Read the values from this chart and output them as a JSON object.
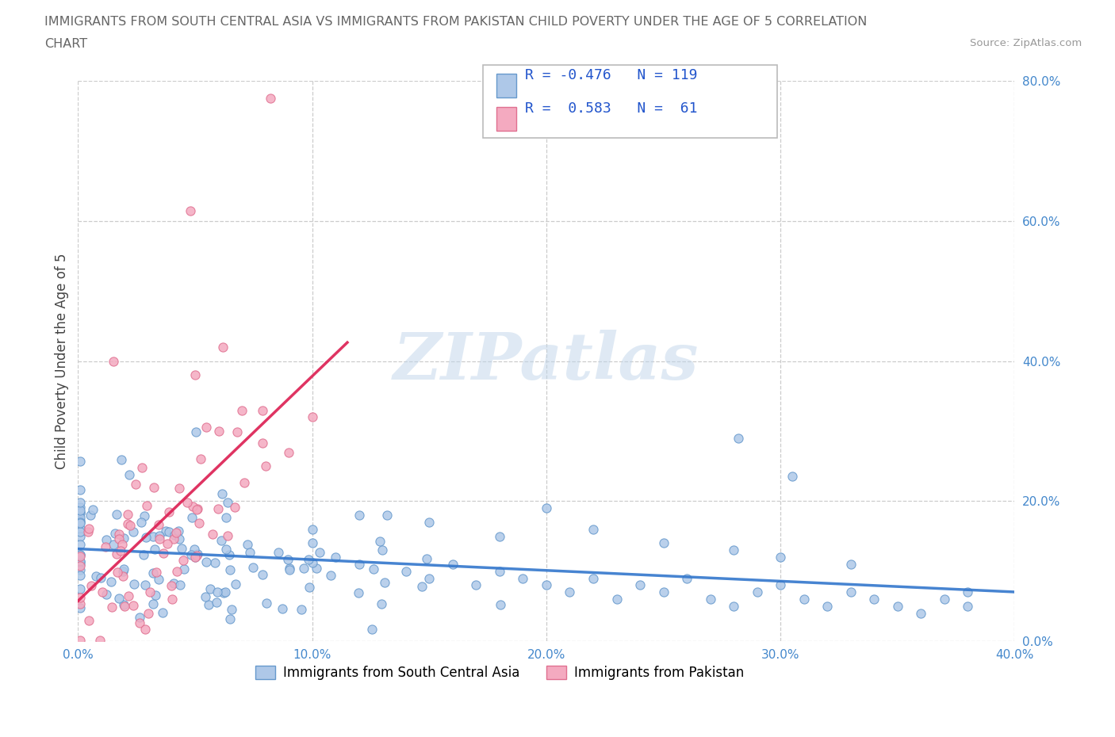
{
  "title_line1": "IMMIGRANTS FROM SOUTH CENTRAL ASIA VS IMMIGRANTS FROM PAKISTAN CHILD POVERTY UNDER THE AGE OF 5 CORRELATION",
  "title_line2": "CHART",
  "source": "Source: ZipAtlas.com",
  "ylabel": "Child Poverty Under the Age of 5",
  "xlim": [
    0.0,
    0.4
  ],
  "ylim": [
    0.0,
    0.8
  ],
  "xticks": [
    0.0,
    0.1,
    0.2,
    0.3,
    0.4
  ],
  "yticks": [
    0.0,
    0.2,
    0.4,
    0.6,
    0.8
  ],
  "xtick_labels": [
    "0.0%",
    "10.0%",
    "20.0%",
    "30.0%",
    "40.0%"
  ],
  "ytick_labels": [
    "0.0%",
    "20.0%",
    "40.0%",
    "60.0%",
    "80.0%"
  ],
  "blue_face": "#aec8e8",
  "blue_edge": "#6699cc",
  "pink_face": "#f4aac0",
  "pink_edge": "#e07090",
  "blue_line": "#3377cc",
  "pink_line": "#dd2255",
  "blue_R": -0.476,
  "blue_N": 119,
  "pink_R": 0.583,
  "pink_N": 61,
  "legend_label_blue": "Immigrants from South Central Asia",
  "legend_label_pink": "Immigrants from Pakistan",
  "watermark": "ZIPatlas",
  "bg_color": "#ffffff",
  "grid_color": "#cccccc",
  "title_color": "#666666",
  "tick_color": "#4488cc",
  "corr_text_color": "#2255cc"
}
